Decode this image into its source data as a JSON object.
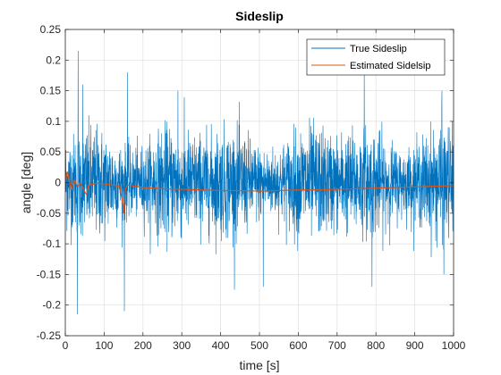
{
  "chart_data": {
    "type": "line",
    "title": "Sideslip",
    "xlabel": "time [s]",
    "ylabel": "angle [deg]",
    "xlim": [
      0,
      1000
    ],
    "ylim": [
      -0.25,
      0.25
    ],
    "xticks": [
      0,
      100,
      200,
      300,
      400,
      500,
      600,
      700,
      800,
      900,
      1000
    ],
    "yticks": [
      -0.25,
      -0.2,
      -0.15,
      -0.1,
      -0.05,
      0,
      0.05,
      0.1,
      0.15,
      0.2,
      0.25
    ],
    "ytick_labels": [
      "-0.25",
      "-0.2",
      "-0.15",
      "-0.1",
      "-0.05",
      "0",
      "0.05",
      "0.1",
      "0.15",
      "0.2",
      "0.25"
    ],
    "grid": true,
    "legend_position": "top-right",
    "series": [
      {
        "name": "True Sideslip",
        "color": "#0072BD",
        "style": "dense noise",
        "typical_amplitude": 0.1,
        "peaks": [
          {
            "x": 33,
            "y": 0.215
          },
          {
            "x": 31,
            "y": -0.215
          },
          {
            "x": 152,
            "y": -0.21
          },
          {
            "x": 45,
            "y": 0.16
          },
          {
            "x": 160,
            "y": 0.18
          },
          {
            "x": 770,
            "y": 0.18
          },
          {
            "x": 790,
            "y": -0.17
          },
          {
            "x": 290,
            "y": 0.15
          },
          {
            "x": 510,
            "y": -0.17
          },
          {
            "x": 970,
            "y": 0.15
          },
          {
            "x": 975,
            "y": -0.15
          }
        ]
      },
      {
        "name": "Estimated Sidelsip",
        "color": "#D95319",
        "x": [
          0,
          5,
          10,
          15,
          20,
          25,
          30,
          40,
          50,
          55,
          60,
          70,
          80,
          100,
          120,
          140,
          148,
          150,
          152,
          155,
          160,
          180,
          200,
          250,
          300,
          350,
          400,
          450,
          500,
          550,
          600,
          650,
          700,
          750,
          800,
          850,
          900,
          950,
          1000
        ],
        "y": [
          0,
          0.018,
          0.005,
          -0.01,
          -0.002,
          0.004,
          -0.006,
          -0.002,
          -0.015,
          -0.02,
          -0.004,
          -0.003,
          -0.001,
          -0.002,
          -0.004,
          -0.006,
          -0.035,
          -0.05,
          -0.03,
          -0.01,
          -0.004,
          -0.006,
          -0.008,
          -0.01,
          -0.011,
          -0.012,
          -0.013,
          -0.013,
          -0.014,
          -0.013,
          -0.012,
          -0.012,
          -0.011,
          -0.01,
          -0.009,
          -0.008,
          -0.007,
          -0.006,
          -0.005
        ]
      }
    ]
  }
}
